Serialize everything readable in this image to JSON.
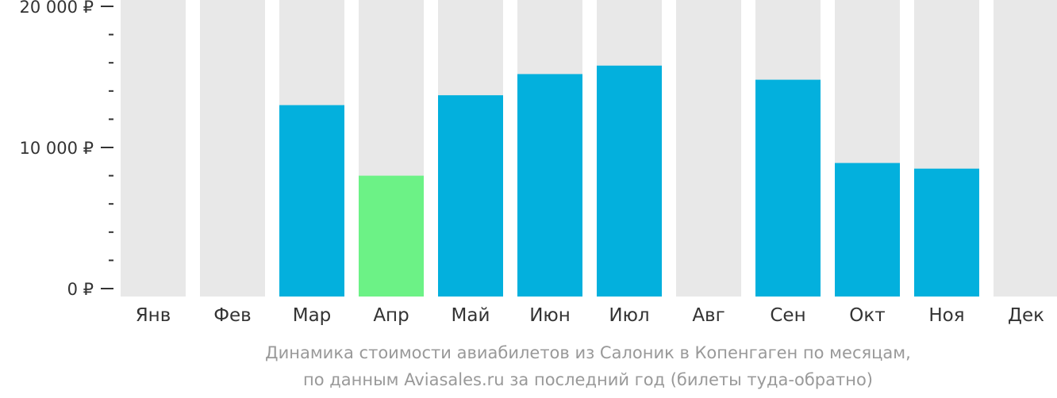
{
  "chart_data": {
    "type": "bar",
    "categories": [
      "Янв",
      "Фев",
      "Мар",
      "Апр",
      "Май",
      "Июн",
      "Июл",
      "Авг",
      "Сен",
      "Окт",
      "Ноя",
      "Дек"
    ],
    "values": [
      null,
      null,
      13000,
      8000,
      13700,
      15200,
      15800,
      null,
      14800,
      8900,
      8500,
      null
    ],
    "highlight_index": 3,
    "ylim": [
      0,
      20000
    ],
    "yticks": [
      {
        "value": 0,
        "label": "0 ₽"
      },
      {
        "value": 10000,
        "label": "10 000 ₽"
      },
      {
        "value": 20000,
        "label": "20 000 ₽"
      }
    ],
    "minor_tick_step": 2000,
    "grid": false,
    "colors": {
      "bar": "#03b0dd",
      "highlight": "#6cf286",
      "background_bar": "#e8e8e8",
      "axis": "#333333"
    }
  },
  "caption": {
    "line1": "Динамика стоимости авиабилетов из Салоник в Копенгаген по месяцам,",
    "line2": "по данным Aviasales.ru за последний год (билеты туда-обратно)"
  }
}
